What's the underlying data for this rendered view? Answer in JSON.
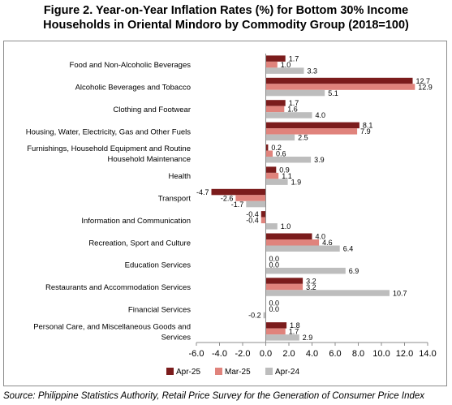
{
  "title_line1": "Figure 2. Year-on-Year Inflation Rates (%) for Bottom 30% Income",
  "title_line2": "Households in Oriental Mindoro by Commodity Group (2018=100)",
  "source": "Source: Philippine Statistics Authority, Retail Price Survey for the Generation of Consumer Price Index",
  "chart_data": {
    "type": "bar",
    "orientation": "horizontal",
    "title": "Figure 2. Year-on-Year Inflation Rates (%) for Bottom 30% Income Households in Oriental Mindoro by Commodity Group (2018=100)",
    "xlabel": "",
    "ylabel": "",
    "xlim": [
      -6.0,
      14.0
    ],
    "x_ticks": [
      "-6.0",
      "-4.0",
      "-2.0",
      "0.0",
      "2.0",
      "4.0",
      "6.0",
      "8.0",
      "10.0",
      "12.0",
      "14.0"
    ],
    "grid": false,
    "legend_position": "bottom",
    "categories": [
      "Food and Non-Alcoholic Beverages",
      "Alcoholic Beverages and Tobacco",
      "Clothing and Footwear",
      "Housing, Water, Electricity, Gas and Other Fuels",
      "Furnishings, Household Equipment and Routine Household Maintenance",
      "Health",
      "Transport",
      "Information and Communication",
      "Recreation, Sport and Culture",
      "Education Services",
      "Restaurants and Accommodation Services",
      "Financial Services",
      "Personal Care, and Miscellaneous Goods and Services"
    ],
    "category_lines": [
      [
        "Food and Non-Alcoholic Beverages"
      ],
      [
        "Alcoholic Beverages and Tobacco"
      ],
      [
        "Clothing and Footwear"
      ],
      [
        "Housing, Water, Electricity, Gas and Other Fuels"
      ],
      [
        "Furnishings, Household Equipment and Routine",
        "Household Maintenance"
      ],
      [
        "Health"
      ],
      [
        "Transport"
      ],
      [
        "Information and Communication"
      ],
      [
        "Recreation, Sport and Culture"
      ],
      [
        "Education Services"
      ],
      [
        "Restaurants and Accommodation Services"
      ],
      [
        "Financial Services"
      ],
      [
        "Personal Care, and Miscellaneous Goods and",
        "Services"
      ]
    ],
    "series": [
      {
        "name": "Apr-25",
        "color": "#7b1c1c",
        "values": [
          1.7,
          12.7,
          1.7,
          8.1,
          0.2,
          0.9,
          -4.7,
          -0.4,
          4.0,
          0.0,
          3.2,
          0.0,
          1.8
        ],
        "labels": [
          "1.7",
          "12.7",
          "1.7",
          "8.1",
          "0.2",
          "0.9",
          "-4.7",
          "-0.4",
          "4.0",
          "0.0",
          "3.2",
          "0.0",
          "1.8"
        ]
      },
      {
        "name": "Mar-25",
        "color": "#e0837c",
        "values": [
          1.0,
          12.9,
          1.6,
          7.9,
          0.6,
          1.1,
          -2.6,
          -0.4,
          4.6,
          0.0,
          3.2,
          0.0,
          1.7
        ],
        "labels": [
          "1.0",
          "12.9",
          "1.6",
          "7.9",
          "0.6",
          "1.1",
          "-2.6",
          "-0.4",
          "4.6",
          "0.0",
          "3.2",
          "0.0",
          "1.7"
        ]
      },
      {
        "name": "Apr-24",
        "color": "#bdbdbd",
        "values": [
          3.3,
          5.1,
          4.0,
          2.5,
          3.9,
          1.9,
          -1.7,
          1.0,
          6.4,
          6.9,
          10.7,
          -0.2,
          2.9
        ],
        "labels": [
          "3.3",
          "5.1",
          "4.0",
          "2.5",
          "3.9",
          "1.9",
          "-1.7",
          "1.0",
          "6.4",
          "6.9",
          "10.7",
          "-0.2",
          "2.9"
        ]
      }
    ]
  }
}
